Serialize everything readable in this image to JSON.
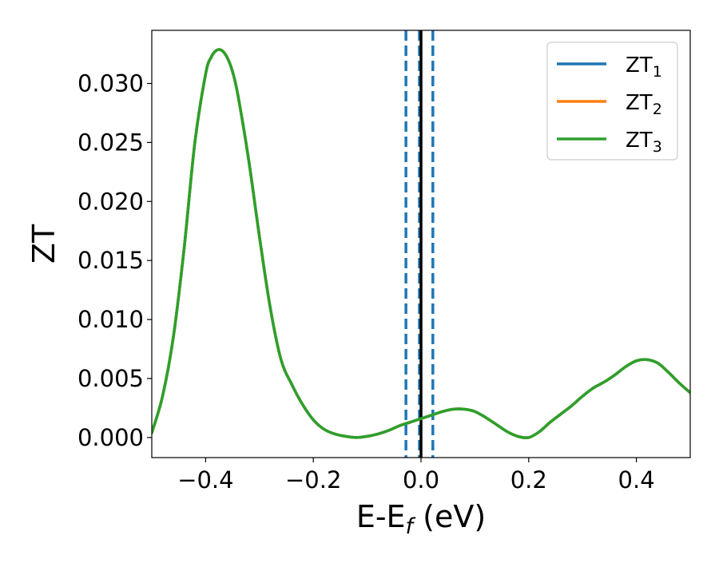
{
  "chart_data": {
    "type": "line",
    "title": "",
    "xlabel_parts": {
      "main": "E-E",
      "sub": "f",
      "tail": " (eV)"
    },
    "ylabel": "ZT",
    "xlim": [
      -0.5,
      0.5
    ],
    "ylim": [
      -0.0017,
      0.0345
    ],
    "x_ticks": [
      -0.4,
      -0.2,
      0.0,
      0.2,
      0.4
    ],
    "x_tick_labels": [
      "−0.4",
      "−0.2",
      "0.0",
      "0.2",
      "0.4"
    ],
    "y_ticks": [
      0.0,
      0.005,
      0.01,
      0.015,
      0.02,
      0.025,
      0.03
    ],
    "y_tick_labels": [
      "0.000",
      "0.005",
      "0.010",
      "0.015",
      "0.020",
      "0.025",
      "0.030"
    ],
    "grid": false,
    "legend_position": "top-right",
    "series": [
      {
        "name_main": "ZT",
        "name_sub": "1",
        "color": "#1f77b4"
      },
      {
        "name_main": "ZT",
        "name_sub": "2",
        "color": "#ff7f0e"
      },
      {
        "name_main": "ZT",
        "name_sub": "3",
        "color": "#2ca02c"
      }
    ],
    "x": [
      -0.5,
      -0.48,
      -0.46,
      -0.44,
      -0.42,
      -0.4,
      -0.39,
      -0.38,
      -0.37,
      -0.36,
      -0.35,
      -0.34,
      -0.32,
      -0.3,
      -0.28,
      -0.26,
      -0.24,
      -0.22,
      -0.2,
      -0.18,
      -0.16,
      -0.14,
      -0.12,
      -0.1,
      -0.08,
      -0.06,
      -0.04,
      -0.02,
      0.0,
      0.02,
      0.04,
      0.06,
      0.08,
      0.1,
      0.12,
      0.14,
      0.16,
      0.18,
      0.2,
      0.22,
      0.24,
      0.26,
      0.28,
      0.3,
      0.32,
      0.34,
      0.36,
      0.38,
      0.4,
      0.42,
      0.44,
      0.46,
      0.48,
      0.5
    ],
    "y": [
      0.0004,
      0.0035,
      0.0085,
      0.016,
      0.025,
      0.0308,
      0.0322,
      0.0328,
      0.0328,
      0.0322,
      0.031,
      0.029,
      0.0235,
      0.017,
      0.011,
      0.0066,
      0.0045,
      0.0028,
      0.0015,
      0.0007,
      0.0003,
      0.0001,
      0.0,
      0.0001,
      0.0003,
      0.0006,
      0.001,
      0.0013,
      0.0016,
      0.0019,
      0.0022,
      0.0024,
      0.0024,
      0.0022,
      0.0017,
      0.0011,
      0.0005,
      0.0001,
      0.0,
      0.0005,
      0.0013,
      0.002,
      0.0027,
      0.0035,
      0.0042,
      0.0047,
      0.0053,
      0.006,
      0.0065,
      0.0066,
      0.0063,
      0.0055,
      0.0046,
      0.0038
    ],
    "vertical_lines": [
      {
        "x": -0.028,
        "style": "dashed",
        "color": "#1f77b4"
      },
      {
        "x": -0.003,
        "style": "dashed",
        "color": "#1f77b4"
      },
      {
        "x": 0.0,
        "style": "solid",
        "color": "#000000"
      },
      {
        "x": 0.022,
        "style": "dashed",
        "color": "#1f77b4"
      }
    ]
  }
}
